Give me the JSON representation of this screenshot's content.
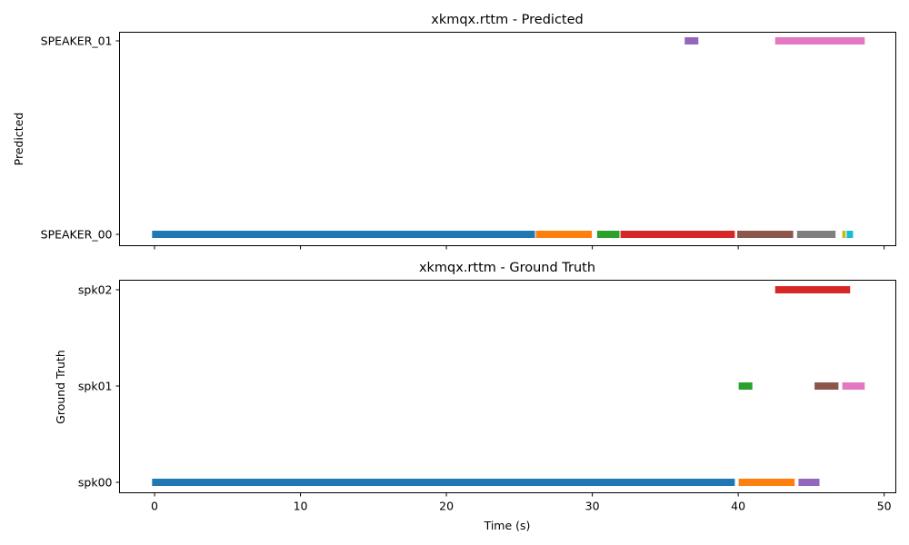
{
  "chart_data": [
    {
      "type": "timeline",
      "title": "xkmqx.rttm - Predicted",
      "ylabel": "Predicted",
      "xlabel": "",
      "xlim": [
        -2.4,
        50.8
      ],
      "xticks": [
        0,
        10,
        20,
        30,
        40,
        50
      ],
      "show_xtick_labels": false,
      "rows": [
        "SPEAKER_00",
        "SPEAKER_01"
      ],
      "segments": [
        {
          "row": "SPEAKER_00",
          "start": -0.2,
          "end": 26.1,
          "color": "#1f77b4"
        },
        {
          "row": "SPEAKER_00",
          "start": 26.1,
          "end": 30.0,
          "color": "#ff7f0e"
        },
        {
          "row": "SPEAKER_00",
          "start": 30.3,
          "end": 31.9,
          "color": "#2ca02c"
        },
        {
          "row": "SPEAKER_00",
          "start": 31.9,
          "end": 39.8,
          "color": "#d62728"
        },
        {
          "row": "SPEAKER_01",
          "start": 36.3,
          "end": 37.3,
          "color": "#9467bd"
        },
        {
          "row": "SPEAKER_00",
          "start": 39.9,
          "end": 43.8,
          "color": "#8c564b"
        },
        {
          "row": "SPEAKER_01",
          "start": 42.5,
          "end": 48.7,
          "color": "#e377c2"
        },
        {
          "row": "SPEAKER_00",
          "start": 44.0,
          "end": 46.7,
          "color": "#7f7f7f"
        },
        {
          "row": "SPEAKER_00",
          "start": 47.1,
          "end": 47.4,
          "color": "#bcbd22"
        },
        {
          "row": "SPEAKER_00",
          "start": 47.4,
          "end": 47.9,
          "color": "#17becf"
        }
      ]
    },
    {
      "type": "timeline",
      "title": "xkmqx.rttm - Ground Truth",
      "ylabel": "Ground Truth",
      "xlabel": "Time (s)",
      "xlim": [
        -2.4,
        50.8
      ],
      "xticks": [
        0,
        10,
        20,
        30,
        40,
        50
      ],
      "show_xtick_labels": true,
      "rows": [
        "spk00",
        "spk01",
        "spk02"
      ],
      "segments": [
        {
          "row": "spk00",
          "start": -0.2,
          "end": 39.8,
          "color": "#1f77b4"
        },
        {
          "row": "spk00",
          "start": 40.0,
          "end": 43.9,
          "color": "#ff7f0e"
        },
        {
          "row": "spk01",
          "start": 40.0,
          "end": 41.0,
          "color": "#2ca02c"
        },
        {
          "row": "spk02",
          "start": 42.5,
          "end": 47.7,
          "color": "#d62728"
        },
        {
          "row": "spk00",
          "start": 44.1,
          "end": 45.6,
          "color": "#9467bd"
        },
        {
          "row": "spk01",
          "start": 45.2,
          "end": 46.9,
          "color": "#8c564b"
        },
        {
          "row": "spk01",
          "start": 47.1,
          "end": 48.7,
          "color": "#e377c2"
        }
      ]
    }
  ]
}
